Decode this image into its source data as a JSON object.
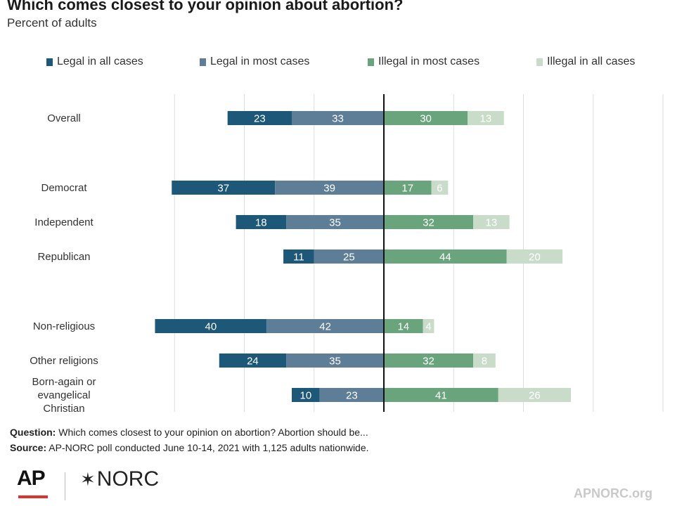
{
  "title": "Which comes closest to your opinion about abortion?",
  "subtitle": "Percent of adults",
  "colors": {
    "legal_all": "#1d5878",
    "legal_most": "#5d7e96",
    "illegal_most": "#6aa47d",
    "illegal_all": "#c8dcc9",
    "gridline": "#dddddd",
    "axis": "#111111"
  },
  "chart_data": {
    "type": "bar",
    "orientation": "horizontal",
    "stacked": "diverging",
    "categories": [
      "Overall",
      "Democrat",
      "Independent",
      "Republican",
      "Non-religious",
      "Other religions",
      "Born-again or evangelical Christian"
    ],
    "category_groups": [
      [
        "Overall"
      ],
      [
        "Democrat",
        "Independent",
        "Republican"
      ],
      [
        "Non-religious",
        "Other religions",
        "Born-again or evangelical Christian"
      ]
    ],
    "series": [
      {
        "name": "Legal in all cases",
        "side": "left",
        "values": [
          23,
          37,
          18,
          11,
          40,
          24,
          10
        ]
      },
      {
        "name": "Legal in most cases",
        "side": "left",
        "values": [
          33,
          39,
          35,
          25,
          42,
          35,
          23
        ]
      },
      {
        "name": "Illegal in most cases",
        "side": "right",
        "values": [
          30,
          17,
          32,
          44,
          14,
          32,
          41
        ]
      },
      {
        "name": "Illegal in all cases",
        "side": "right",
        "values": [
          13,
          6,
          13,
          20,
          4,
          8,
          26
        ]
      }
    ],
    "xlim": [
      -75,
      100
    ],
    "grid": true,
    "legend": "top"
  },
  "legend_items": [
    "Legal in all cases",
    "Legal in most cases",
    "Illegal in most cases",
    "Illegal in all cases"
  ],
  "notes": {
    "question_label": "Question:",
    "question_text": " Which comes closest to your opinion on abortion? Abortion should be...",
    "source_label": "Source:",
    "source_text": " AP-NORC poll conducted June 10-14, 2021 with 1,125 adults nationwide."
  },
  "logos": {
    "ap": "AP",
    "norc_star": "✶",
    "norc": "NORC"
  },
  "site_url": "APNORC.org"
}
